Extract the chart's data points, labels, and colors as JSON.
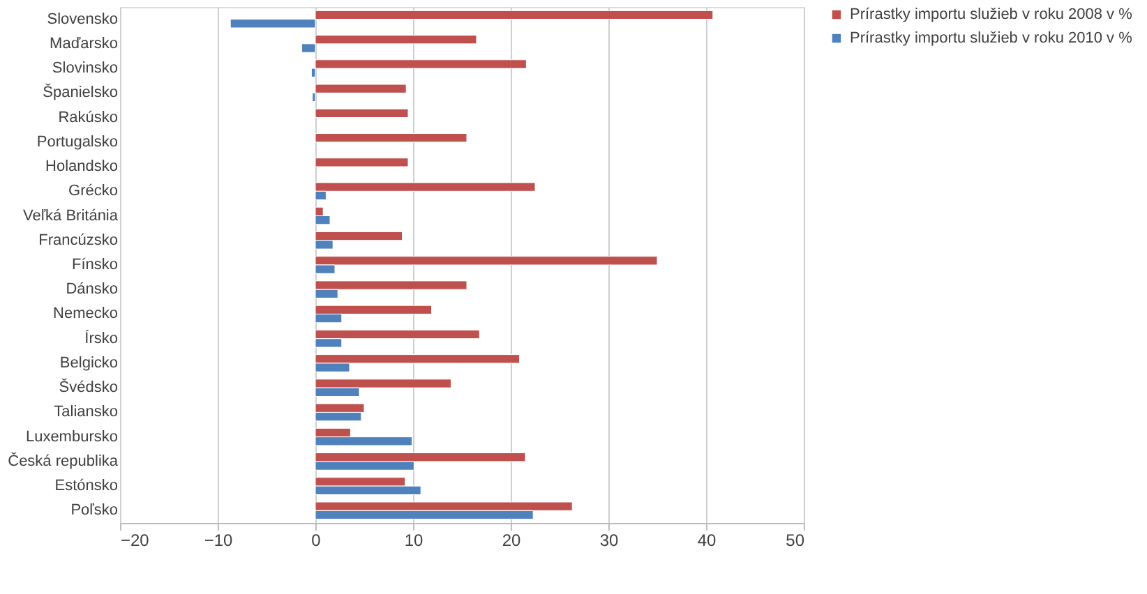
{
  "chart_data": {
    "type": "bar",
    "orientation": "horizontal",
    "categories": [
      "Slovensko",
      "Maďarsko",
      "Slovinsko",
      "Španielsko",
      "Rakúsko",
      "Portugalsko",
      "Holandsko",
      "Grécko",
      "Veľká Británia",
      "Francúzsko",
      "Fínsko",
      "Dánsko",
      "Nemecko",
      "Írsko",
      "Belgicko",
      "Švédsko",
      "Taliansko",
      "Luxembursko",
      "Česká republika",
      "Estónsko",
      "Poľsko"
    ],
    "series": [
      {
        "name": "Prírastky importu služieb v roku 2008 v %",
        "color": "#c0504d",
        "values": [
          40.7,
          16.5,
          21.6,
          9.3,
          9.5,
          15.5,
          9.5,
          22.5,
          0.8,
          8.9,
          35,
          15.5,
          11.9,
          16.8,
          20.9,
          13.9,
          5,
          3.6,
          21.5,
          9.2,
          26.3
        ]
      },
      {
        "name": "Prírastky importu služieb v roku 2010 v %",
        "color": "#4f81bd",
        "values": [
          -8.7,
          -1.4,
          -0.4,
          -0.3,
          null,
          null,
          null,
          1.1,
          1.5,
          1.8,
          2,
          2.3,
          2.7,
          2.7,
          3.5,
          4.5,
          4.7,
          9.9,
          10.1,
          10.8,
          22.3
        ]
      }
    ],
    "xlim": [
      -20,
      50
    ],
    "xticks": [
      -20,
      -10,
      0,
      10,
      20,
      30,
      40,
      50
    ],
    "grid": "x",
    "legend": "right"
  }
}
